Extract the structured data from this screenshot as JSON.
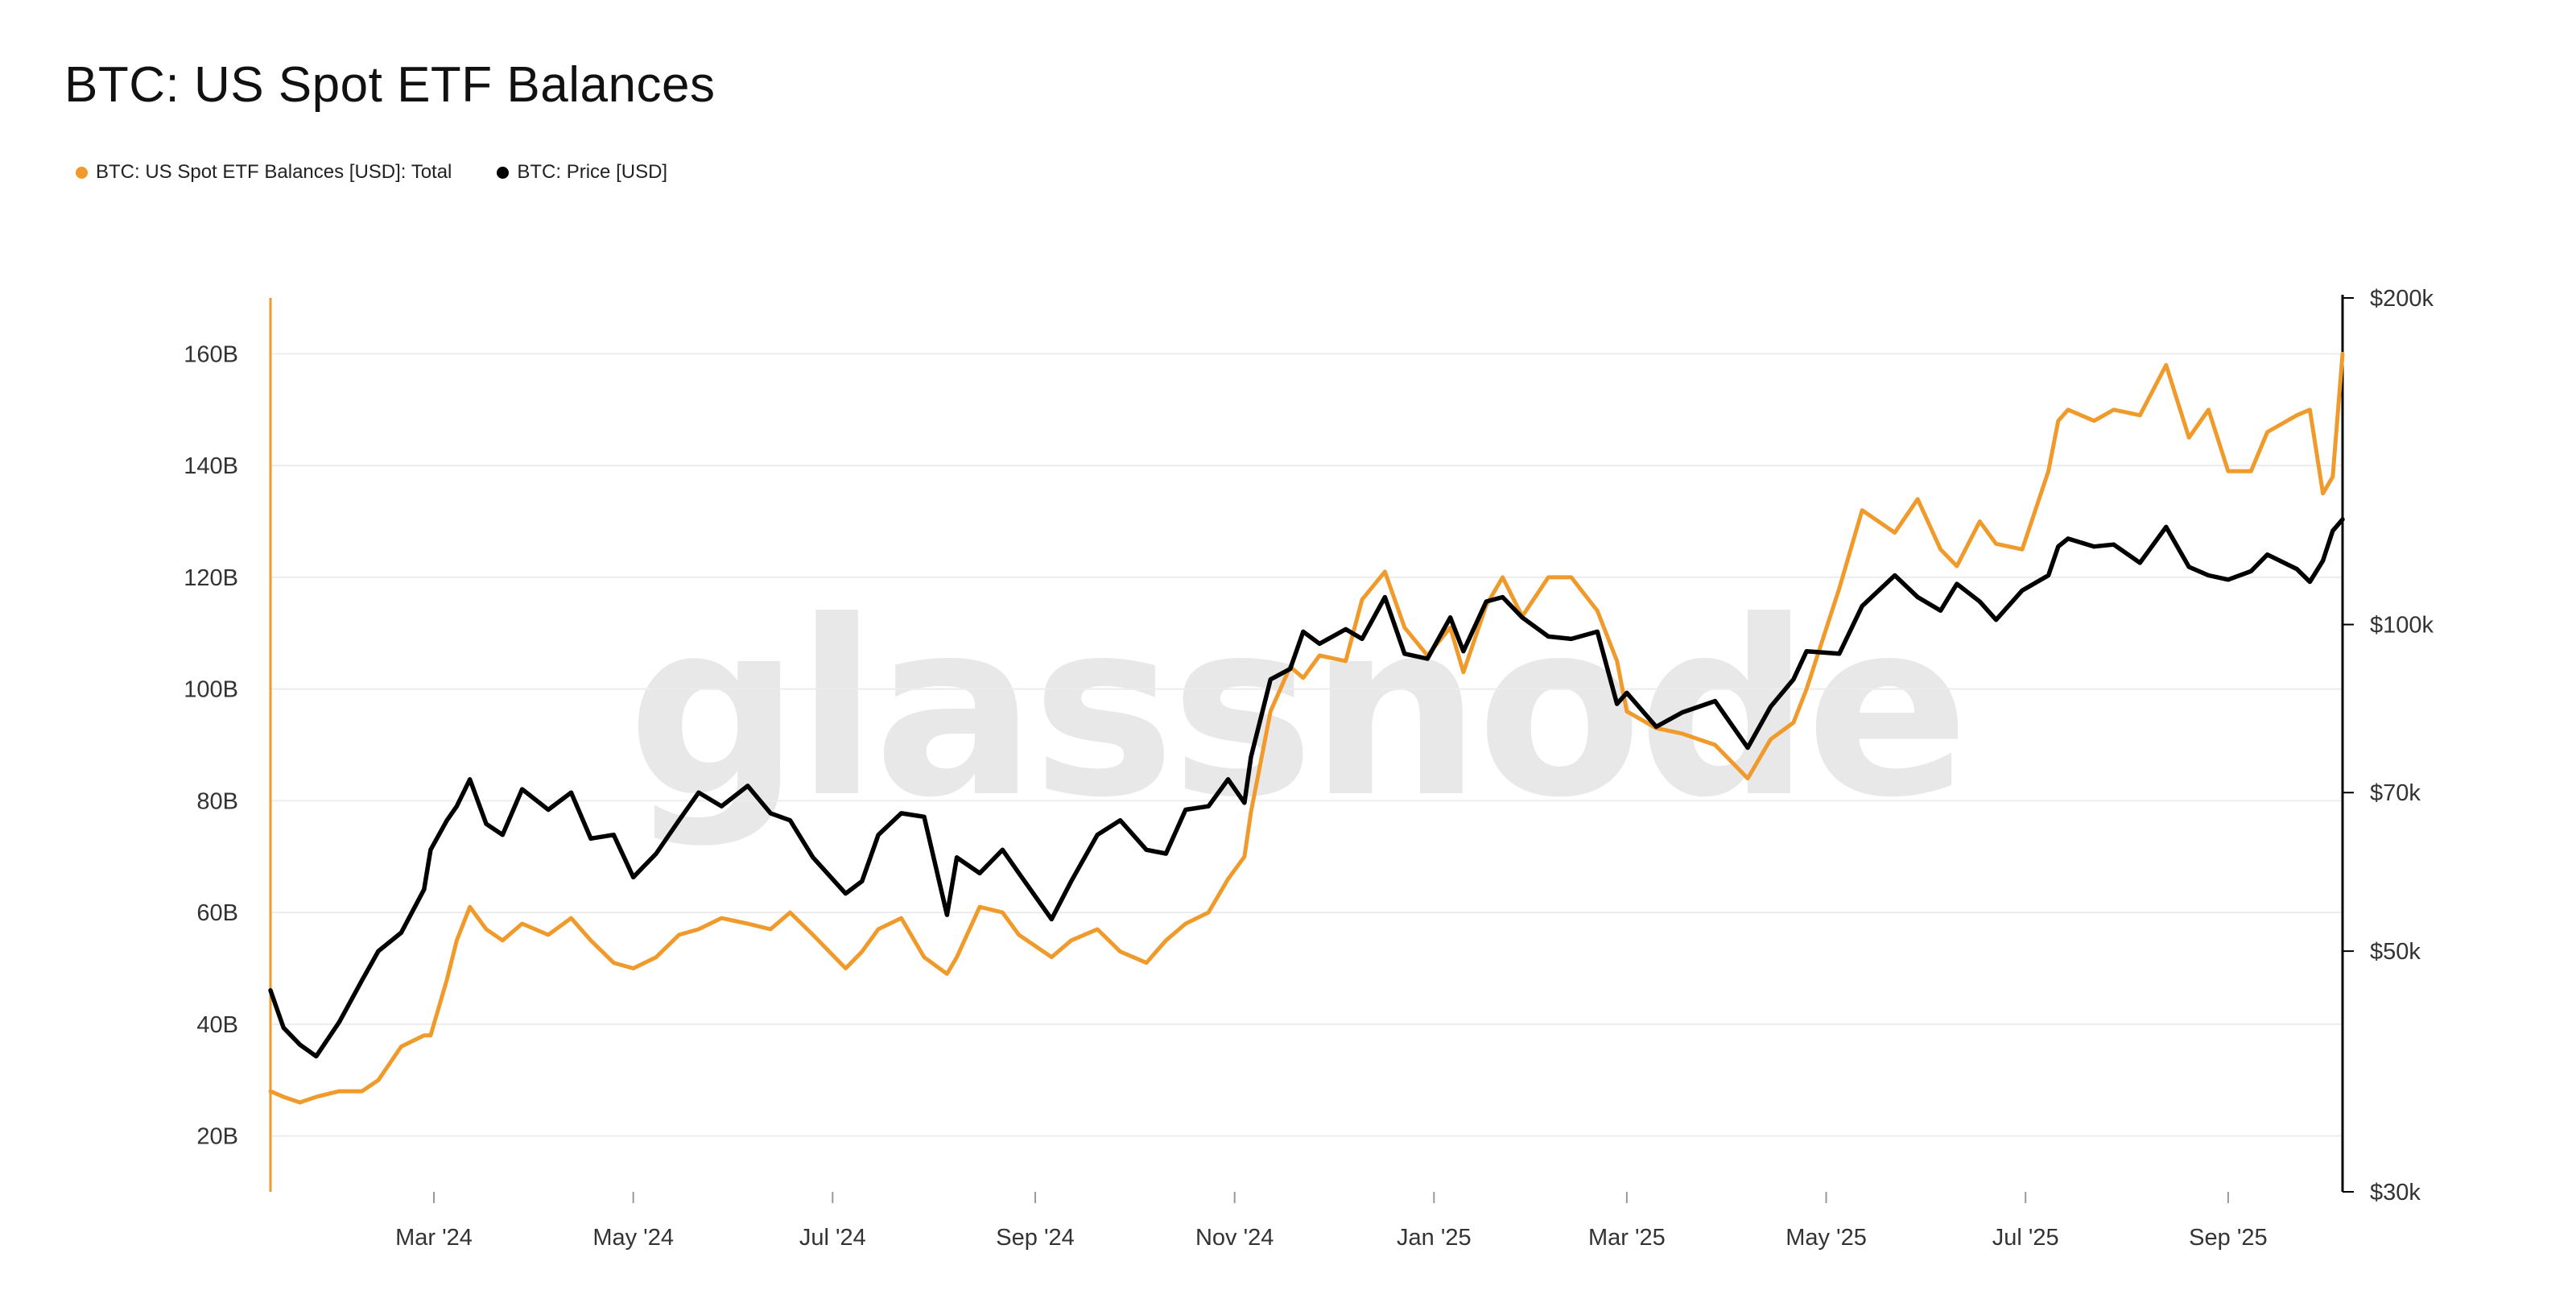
{
  "header": {
    "title": "BTC: US Spot ETF Balances"
  },
  "legend": [
    {
      "label": "BTC: US Spot ETF Balances [USD]: Total",
      "color": "#f09a2b"
    },
    {
      "label": "BTC: Price [USD]",
      "color": "#000000"
    }
  ],
  "watermark": "glassnode",
  "chart_data": {
    "type": "line",
    "title": "BTC: US Spot ETF Balances",
    "x_tick_labels": [
      "Mar '24",
      "May '24",
      "Jul '24",
      "Sep '24",
      "Nov '24",
      "Jan '25",
      "Mar '25",
      "May '25",
      "Jul '25",
      "Sep '25"
    ],
    "x_tick_dates": [
      "2024-03-01",
      "2024-05-01",
      "2024-07-01",
      "2024-09-01",
      "2024-11-01",
      "2025-01-01",
      "2025-03-01",
      "2025-05-01",
      "2025-07-01",
      "2025-09-01"
    ],
    "x_range": [
      "2024-01-11",
      "2025-10-06"
    ],
    "y_left": {
      "ticks": [
        "20B",
        "40B",
        "60B",
        "80B",
        "100B",
        "120B",
        "140B",
        "160B"
      ],
      "tick_values": [
        20,
        40,
        60,
        80,
        100,
        120,
        140,
        160
      ],
      "range": [
        10,
        170
      ],
      "unit": "billion USD",
      "color": "#f09a2b"
    },
    "y_right": {
      "ticks": [
        "$30k",
        "$50k",
        "$70k",
        "$100k",
        "$200k"
      ],
      "tick_values": [
        30000,
        50000,
        70000,
        100000,
        200000
      ],
      "range": [
        30000,
        200000
      ],
      "scale": "log",
      "color": "#000000"
    },
    "grid": "horizontal",
    "legend_position": "top-left",
    "series": [
      {
        "name": "BTC: US Spot ETF Balances [USD]: Total",
        "axis": "left",
        "color": "#f09a2b",
        "x": [
          "2024-01-11",
          "2024-01-15",
          "2024-01-20",
          "2024-01-25",
          "2024-02-01",
          "2024-02-08",
          "2024-02-13",
          "2024-02-20",
          "2024-02-27",
          "2024-02-29",
          "2024-03-05",
          "2024-03-08",
          "2024-03-12",
          "2024-03-17",
          "2024-03-22",
          "2024-03-28",
          "2024-04-05",
          "2024-04-12",
          "2024-04-18",
          "2024-04-25",
          "2024-05-01",
          "2024-05-08",
          "2024-05-15",
          "2024-05-21",
          "2024-05-28",
          "2024-06-05",
          "2024-06-12",
          "2024-06-18",
          "2024-06-25",
          "2024-07-05",
          "2024-07-10",
          "2024-07-15",
          "2024-07-22",
          "2024-07-29",
          "2024-08-05",
          "2024-08-08",
          "2024-08-15",
          "2024-08-22",
          "2024-08-27",
          "2024-09-06",
          "2024-09-12",
          "2024-09-20",
          "2024-09-27",
          "2024-10-05",
          "2024-10-11",
          "2024-10-17",
          "2024-10-24",
          "2024-10-30",
          "2024-11-04",
          "2024-11-06",
          "2024-11-12",
          "2024-11-18",
          "2024-11-22",
          "2024-11-27",
          "2024-12-05",
          "2024-12-10",
          "2024-12-17",
          "2024-12-23",
          "2024-12-30",
          "2025-01-06",
          "2025-01-10",
          "2025-01-17",
          "2025-01-22",
          "2025-01-28",
          "2025-02-05",
          "2025-02-12",
          "2025-02-20",
          "2025-02-26",
          "2025-03-01",
          "2025-03-10",
          "2025-03-18",
          "2025-03-28",
          "2025-04-07",
          "2025-04-14",
          "2025-04-21",
          "2025-04-25",
          "2025-05-05",
          "2025-05-12",
          "2025-05-22",
          "2025-05-29",
          "2025-06-05",
          "2025-06-10",
          "2025-06-17",
          "2025-06-22",
          "2025-06-30",
          "2025-07-08",
          "2025-07-11",
          "2025-07-14",
          "2025-07-22",
          "2025-07-28",
          "2025-08-05",
          "2025-08-13",
          "2025-08-20",
          "2025-08-26",
          "2025-09-01",
          "2025-09-08",
          "2025-09-13",
          "2025-09-22",
          "2025-09-26",
          "2025-09-30",
          "2025-10-03",
          "2025-10-06"
        ],
        "values": [
          28,
          27,
          26,
          27,
          28,
          28,
          30,
          36,
          38,
          38,
          48,
          55,
          61,
          57,
          55,
          58,
          56,
          59,
          55,
          51,
          50,
          52,
          56,
          57,
          59,
          58,
          57,
          60,
          56,
          50,
          53,
          57,
          59,
          52,
          49,
          52,
          61,
          60,
          56,
          52,
          55,
          57,
          53,
          51,
          55,
          58,
          60,
          66,
          70,
          78,
          96,
          104,
          102,
          106,
          105,
          116,
          121,
          111,
          106,
          111,
          103,
          115,
          120,
          113,
          120,
          120,
          114,
          105,
          96,
          93,
          92,
          90,
          84,
          91,
          94,
          100,
          118,
          132,
          128,
          134,
          125,
          122,
          130,
          126,
          125,
          139,
          148,
          150,
          148,
          150,
          149,
          158,
          145,
          150,
          139,
          139,
          146,
          149,
          150,
          135,
          138,
          160
        ]
      },
      {
        "name": "BTC: Price [USD]",
        "axis": "right",
        "color": "#000000",
        "x": [
          "2024-01-11",
          "2024-01-15",
          "2024-01-20",
          "2024-01-25",
          "2024-02-01",
          "2024-02-08",
          "2024-02-13",
          "2024-02-20",
          "2024-02-27",
          "2024-02-29",
          "2024-03-05",
          "2024-03-08",
          "2024-03-12",
          "2024-03-17",
          "2024-03-22",
          "2024-03-28",
          "2024-04-05",
          "2024-04-12",
          "2024-04-18",
          "2024-04-25",
          "2024-05-01",
          "2024-05-08",
          "2024-05-15",
          "2024-05-21",
          "2024-05-28",
          "2024-06-05",
          "2024-06-12",
          "2024-06-18",
          "2024-06-25",
          "2024-07-05",
          "2024-07-10",
          "2024-07-15",
          "2024-07-22",
          "2024-07-29",
          "2024-08-05",
          "2024-08-08",
          "2024-08-15",
          "2024-08-22",
          "2024-08-27",
          "2024-09-06",
          "2024-09-12",
          "2024-09-20",
          "2024-09-27",
          "2024-10-05",
          "2024-10-11",
          "2024-10-17",
          "2024-10-24",
          "2024-10-30",
          "2024-11-04",
          "2024-11-06",
          "2024-11-12",
          "2024-11-18",
          "2024-11-22",
          "2024-11-27",
          "2024-12-05",
          "2024-12-10",
          "2024-12-17",
          "2024-12-23",
          "2024-12-30",
          "2025-01-06",
          "2025-01-10",
          "2025-01-17",
          "2025-01-22",
          "2025-01-28",
          "2025-02-05",
          "2025-02-12",
          "2025-02-20",
          "2025-02-26",
          "2025-03-01",
          "2025-03-10",
          "2025-03-18",
          "2025-03-28",
          "2025-04-07",
          "2025-04-14",
          "2025-04-21",
          "2025-04-25",
          "2025-05-05",
          "2025-05-12",
          "2025-05-22",
          "2025-05-29",
          "2025-06-05",
          "2025-06-10",
          "2025-06-17",
          "2025-06-22",
          "2025-06-30",
          "2025-07-08",
          "2025-07-11",
          "2025-07-14",
          "2025-07-22",
          "2025-07-28",
          "2025-08-05",
          "2025-08-13",
          "2025-08-20",
          "2025-08-26",
          "2025-09-01",
          "2025-09-08",
          "2025-09-13",
          "2025-09-22",
          "2025-09-26",
          "2025-09-30",
          "2025-10-03",
          "2025-10-06"
        ],
        "values": [
          46000,
          42500,
          41000,
          40000,
          43000,
          47000,
          50000,
          52000,
          57000,
          62000,
          66000,
          68000,
          72000,
          65500,
          64000,
          70500,
          67500,
          70000,
          63500,
          64000,
          58500,
          61500,
          66000,
          70000,
          68000,
          71000,
          67000,
          66000,
          61000,
          56500,
          58000,
          64000,
          67000,
          66500,
          54000,
          61000,
          59000,
          62000,
          59000,
          53500,
          58000,
          64000,
          66000,
          62000,
          61500,
          67500,
          68000,
          72000,
          68500,
          75500,
          89000,
          91000,
          98500,
          96000,
          99000,
          97000,
          106000,
          94000,
          93000,
          101500,
          94500,
          105000,
          106000,
          101500,
          97500,
          97000,
          98500,
          84500,
          86500,
          80500,
          83000,
          85000,
          77000,
          84000,
          89000,
          94500,
          94000,
          104000,
          111000,
          106000,
          103000,
          109000,
          105000,
          101000,
          107500,
          111000,
          118000,
          120000,
          118000,
          118500,
          114000,
          123000,
          113000,
          111000,
          110000,
          112000,
          116000,
          112500,
          109500,
          114500,
          122000,
          125000
        ]
      }
    ]
  }
}
